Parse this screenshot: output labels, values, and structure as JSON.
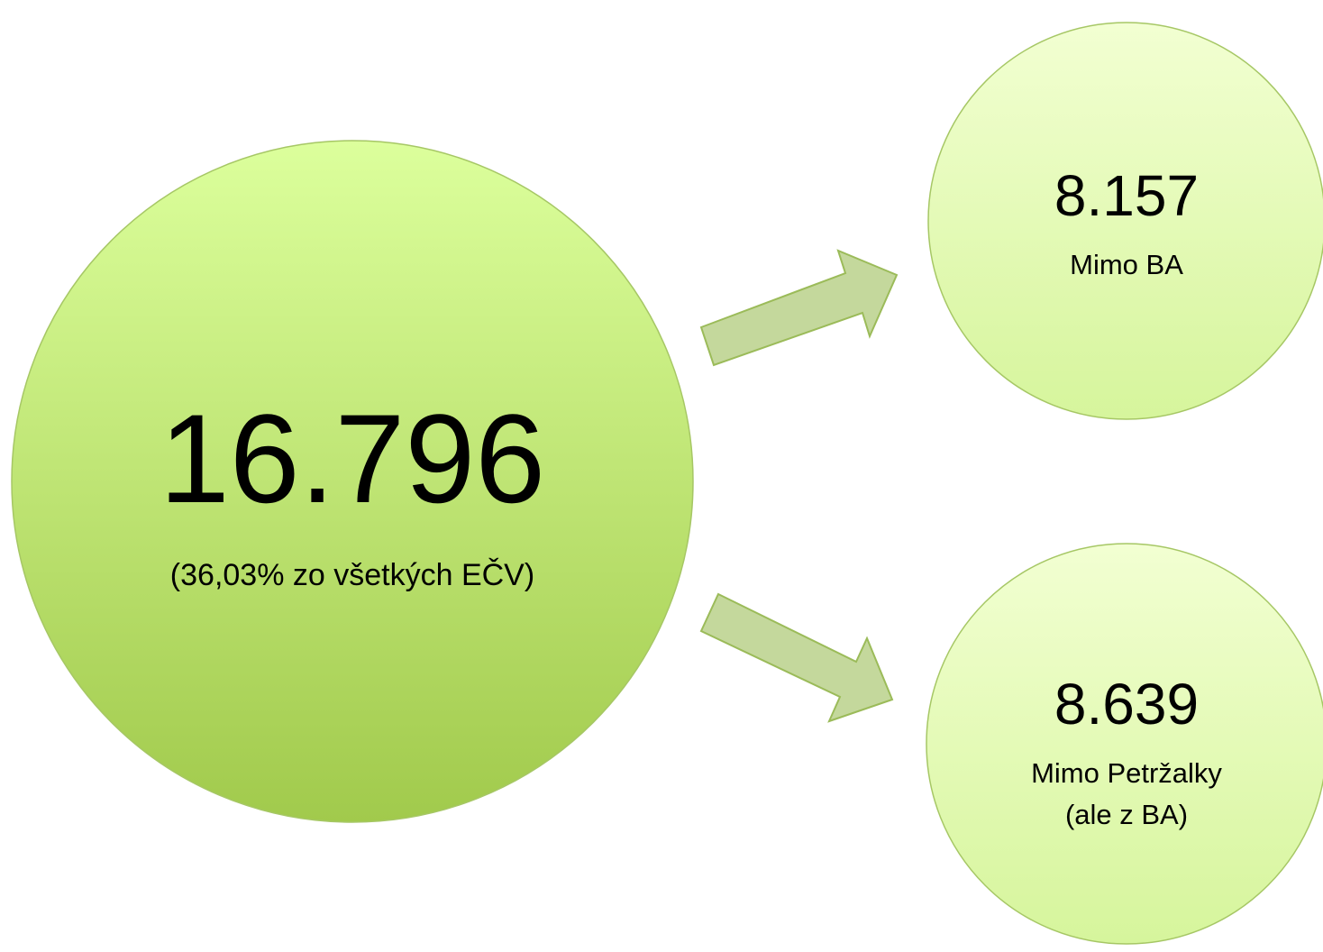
{
  "nodes": [
    {
      "value": "16.796",
      "lines": [
        "(36,03% zo všetkých EČV)"
      ]
    },
    {
      "value": "8.157",
      "lines": [
        "Mimo BA"
      ]
    },
    {
      "value": "8.639",
      "lines": [
        "Mimo Petržalky",
        "(ale z BA)"
      ]
    }
  ]
}
